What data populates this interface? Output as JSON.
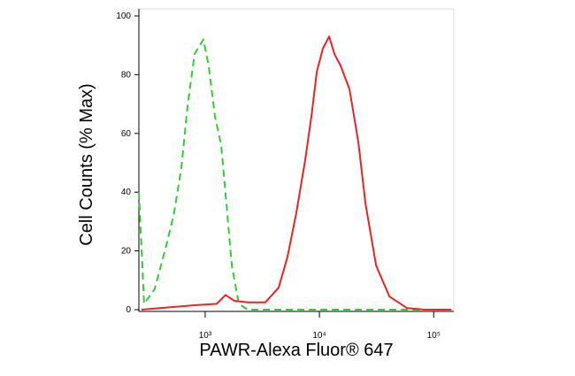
{
  "chart_data": {
    "type": "line",
    "x_label": "PAWR-Alexa Fluor® 647",
    "y_label": "Cell Counts (% Max)",
    "xscale": "log",
    "xlim": [
      263,
      150000
    ],
    "ylim": [
      0,
      100
    ],
    "xticks": [
      {
        "value": 1000,
        "label": "10³"
      },
      {
        "value": 10000,
        "label": "10⁴"
      },
      {
        "value": 100000,
        "label": "10⁵"
      }
    ],
    "yticks": [
      0,
      20,
      40,
      60,
      80,
      100
    ],
    "series": [
      {
        "color": "#33cc33",
        "dash": true,
        "x": [
          263,
          292,
          361,
          472,
          535,
          618,
          700,
          807,
          965,
          1074,
          1217,
          1380,
          1536,
          1709,
          1972,
          2356,
          83600
        ],
        "values": [
          40,
          2,
          7,
          24,
          33,
          48,
          69,
          87,
          92,
          83,
          66,
          56,
          36,
          15,
          2,
          0,
          0
        ]
      },
      {
        "color": "#ee2222",
        "dash": false,
        "x": [
          277,
          807,
          1261,
          1508,
          1802,
          2356,
          3365,
          4397,
          5260,
          6285,
          7513,
          8513,
          9480,
          10740,
          12170,
          13540,
          15350,
          18350,
          21930,
          25300,
          31340,
          40950,
          58480,
          83600,
          142900
        ],
        "values": [
          0,
          1.5,
          2,
          5,
          3,
          2.5,
          2.5,
          7.5,
          18,
          33,
          51,
          66,
          81,
          89,
          93,
          87,
          83,
          75,
          57,
          36,
          15,
          4.5,
          0.5,
          0,
          0
        ]
      }
    ]
  }
}
